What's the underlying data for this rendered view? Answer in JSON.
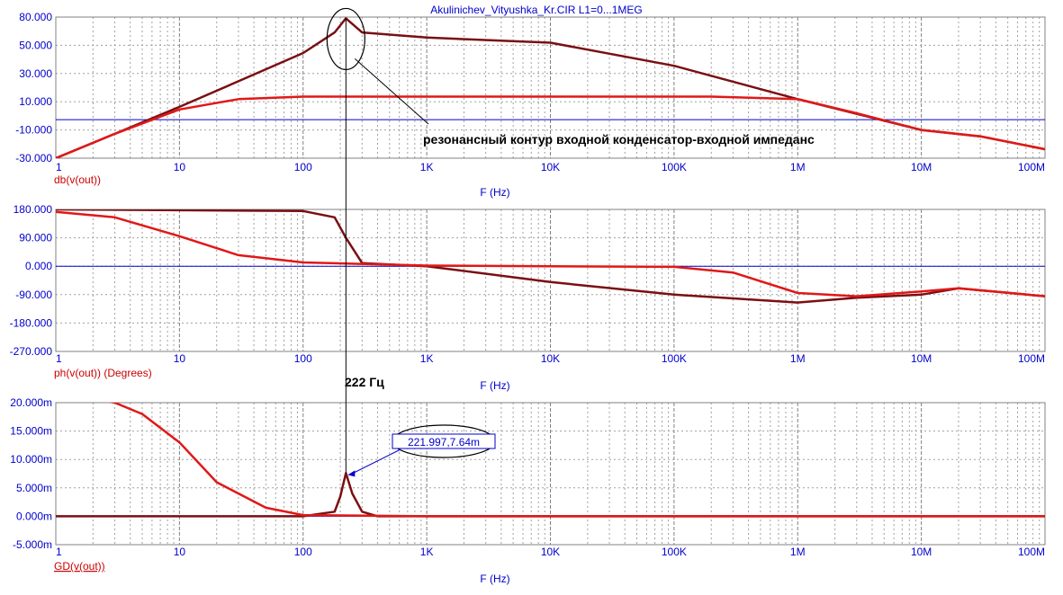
{
  "window_title": "Akulinichev_Vityushka_Kr.CIR L1=0...1MEG",
  "x_axis": {
    "label": "F (Hz)",
    "scale": "log",
    "range": [
      1,
      100000000
    ],
    "ticks": [
      "1",
      "10",
      "100",
      "1K",
      "10K",
      "100K",
      "1M",
      "10M",
      "100M"
    ]
  },
  "colors": {
    "axis_text": "#0000cc",
    "trace_red": "#e01818",
    "trace_dark": "#7a0f12",
    "grid": "#a0a0a0",
    "zero_line": "#0000cc"
  },
  "chart_data": [
    {
      "type": "line",
      "ylabel": "db(v(out))",
      "yticks": [
        "80.000",
        "50.000",
        "30.000",
        "10.000",
        "-10.000",
        "-30.000"
      ],
      "ylim": [
        -30,
        80
      ],
      "grid": true,
      "series": [
        {
          "color": "#7a0f12",
          "x": [
            1,
            3,
            10,
            30,
            100,
            180,
            222,
            300,
            1000,
            10000,
            100000,
            1000000,
            10000000,
            30000000,
            100000000
          ],
          "y": [
            -30,
            -11,
            10,
            30,
            52,
            68,
            79,
            68,
            64,
            60,
            42,
            16,
            -8,
            -13,
            -23
          ]
        },
        {
          "color": "#e01818",
          "x": [
            1,
            3,
            10,
            30,
            100,
            1000,
            10000,
            200000,
            1000000,
            3000000,
            10000000,
            30000000,
            100000000
          ],
          "y": [
            -30,
            -11,
            8,
            16,
            18,
            18,
            18,
            18,
            16,
            5,
            -8,
            -13,
            -23
          ]
        }
      ]
    },
    {
      "type": "line",
      "ylabel": "ph(v(out)) (Degrees)",
      "yticks": [
        "180.000",
        "90.000",
        "0.000",
        "-90.000",
        "-180.000",
        "-270.000"
      ],
      "ylim": [
        -270,
        180
      ],
      "grid": true,
      "series": [
        {
          "color": "#7a0f12",
          "x": [
            1,
            100,
            180,
            222,
            300,
            1000,
            10000,
            100000,
            1000000,
            3000000,
            10000000,
            20000000,
            100000000
          ],
          "y": [
            180,
            175,
            155,
            90,
            10,
            0,
            -50,
            -90,
            -115,
            -100,
            -90,
            -70,
            -95
          ]
        },
        {
          "color": "#e01818",
          "x": [
            1,
            3,
            10,
            30,
            100,
            1000,
            10000,
            100000,
            300000,
            1000000,
            3000000,
            10000000,
            20000000,
            100000000
          ],
          "y": [
            172,
            155,
            95,
            35,
            12,
            2,
            0,
            -2,
            -20,
            -85,
            -95,
            -80,
            -70,
            -95
          ]
        }
      ]
    },
    {
      "type": "line",
      "ylabel": "GD(v(out))",
      "yticks": [
        "20.000m",
        "15.000m",
        "10.000m",
        "5.000m",
        "0.000m",
        "-5.000m"
      ],
      "ylim": [
        -0.005,
        0.02
      ],
      "grid": true,
      "series": [
        {
          "color": "#7a0f12",
          "x": [
            1,
            100,
            180,
            200,
            222,
            250,
            300,
            400,
            100000000
          ],
          "y": [
            0,
            0,
            0.0008,
            0.0035,
            0.0076,
            0.004,
            0.0008,
            0,
            0
          ]
        },
        {
          "color": "#e01818",
          "x": [
            1,
            3,
            5,
            10,
            20,
            50,
            100,
            1000,
            100000000
          ],
          "y": [
            0.022,
            0.02,
            0.018,
            0.013,
            0.006,
            0.0015,
            0.0002,
            0,
            0
          ]
        }
      ]
    }
  ],
  "annotations": {
    "resonance_note": "резонансный контур входной конденсатор-входной импеданс",
    "freq_note": "222 Гц",
    "point_label": "221.997,7.64m"
  }
}
